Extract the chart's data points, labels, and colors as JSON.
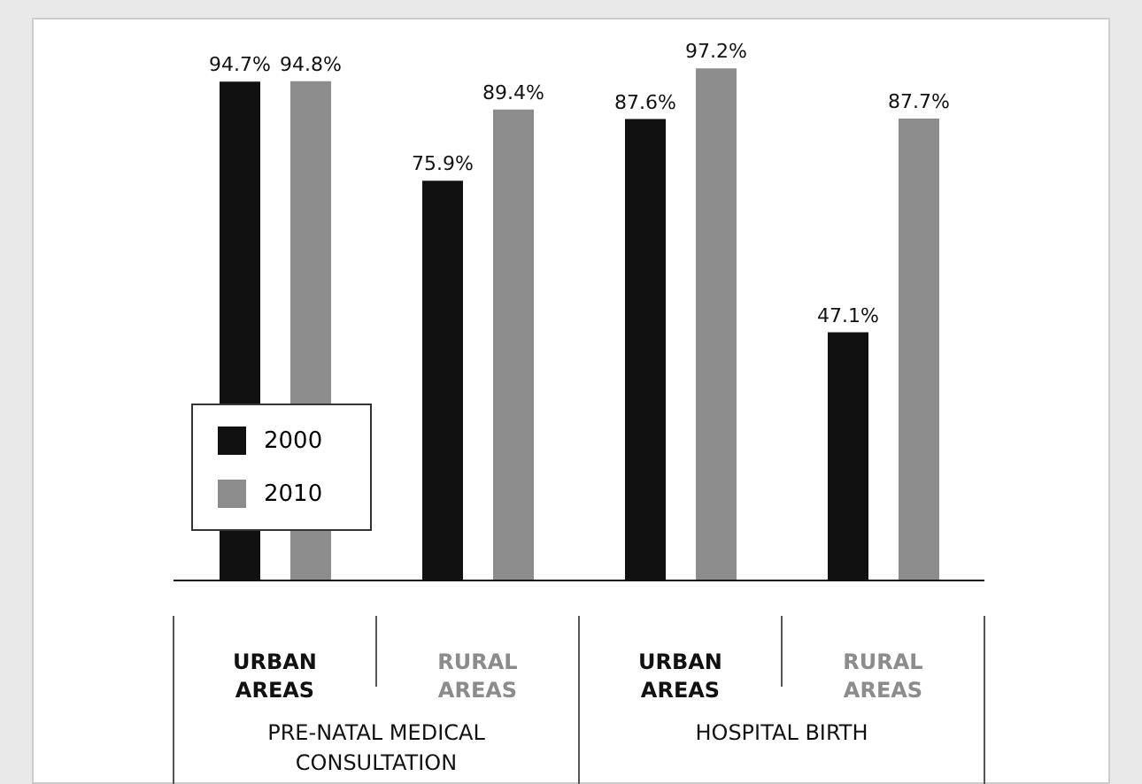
{
  "chart_data": {
    "type": "bar",
    "categories": [
      "URBAN AREAS",
      "RURAL AREAS",
      "URBAN AREAS",
      "RURAL AREAS"
    ],
    "series": [
      {
        "name": "2000",
        "color": "#111111",
        "values": [
          94.7,
          75.9,
          87.6,
          47.1
        ],
        "value_labels": [
          "94.7%",
          "75.9%",
          "87.6%",
          "47.1%"
        ]
      },
      {
        "name": "2010",
        "color": "#8c8c8c",
        "values": [
          94.8,
          89.4,
          97.2,
          87.7
        ],
        "value_labels": [
          "94.8%",
          "89.4%",
          "97.2%",
          "87.7%"
        ]
      }
    ],
    "annotations": [
      "PRE-NATAL MEDICAL CONSULTATION",
      "HOSPITAL BIRTH"
    ],
    "legend": "left",
    "grid": false
  }
}
